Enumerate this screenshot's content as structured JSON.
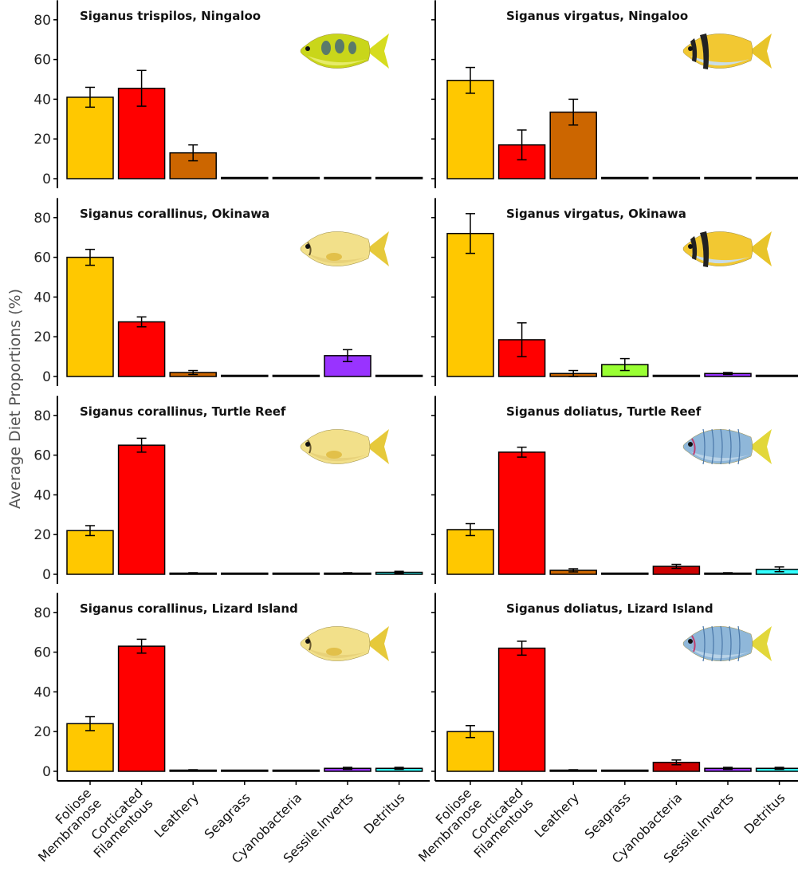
{
  "chart_data": {
    "type": "bar",
    "ylabel": "Average Diet Proportions (%)",
    "yticks": [
      0,
      20,
      40,
      60,
      80
    ],
    "ylim": [
      0,
      85
    ],
    "categories": [
      "Foliose Membranose",
      "Corticated Filamentous",
      "Leathery",
      "Seagrass",
      "Cyanobacteria",
      "Sessile.Inverts",
      "Detritus"
    ],
    "category_lines": [
      [
        "Foliose",
        "Membranose"
      ],
      [
        "Corticated",
        "Filamentous"
      ],
      [
        "Leathery"
      ],
      [
        "Seagrass"
      ],
      [
        "Cyanobacteria"
      ],
      [
        "Sessile.Inverts"
      ],
      [
        "Detritus"
      ]
    ],
    "category_colors": [
      "#FFC800",
      "#FF0000",
      "#CC6600",
      "#99FF33",
      "#CC0000",
      "#9933FF",
      "#33FFFF"
    ],
    "error_bars": "mean ± SE",
    "panels": [
      {
        "title": "Siganus trispilos, Ningaloo",
        "values": [
          41,
          45.5,
          13,
          0,
          0,
          0,
          0
        ],
        "errors": [
          5,
          9,
          4,
          0,
          0,
          0,
          0
        ],
        "fish": "yellow-spotted-rabbitfish"
      },
      {
        "title": "Siganus virgatus, Ningaloo",
        "values": [
          49.5,
          17,
          33.5,
          0,
          0,
          0,
          0
        ],
        "errors": [
          6.5,
          7.5,
          6.5,
          0,
          0,
          0,
          0
        ],
        "fish": "barred-rabbitfish"
      },
      {
        "title": "Siganus corallinus, Okinawa",
        "values": [
          60,
          27.5,
          2,
          0,
          0,
          10.5,
          0
        ],
        "errors": [
          4,
          2.5,
          1,
          0,
          0,
          3,
          0
        ],
        "fish": "blue-spotted-rabbitfish"
      },
      {
        "title": "Siganus virgatus, Okinawa",
        "values": [
          72,
          18.5,
          1.5,
          6,
          0,
          1.5,
          0
        ],
        "errors": [
          10,
          8.5,
          1.5,
          3,
          0,
          0.5,
          0
        ],
        "fish": "barred-rabbitfish"
      },
      {
        "title": "Siganus corallinus, Turtle Reef",
        "values": [
          22,
          65,
          0.5,
          0,
          0,
          0.5,
          1
        ],
        "errors": [
          2.5,
          3.5,
          0.3,
          0,
          0,
          0.3,
          0.5
        ],
        "fish": "blue-spotted-rabbitfish"
      },
      {
        "title": "Siganus doliatus, Turtle Reef",
        "values": [
          22.5,
          61.5,
          2,
          0,
          4,
          0.5,
          2.5
        ],
        "errors": [
          3,
          2.5,
          0.8,
          0,
          1,
          0.3,
          1.2
        ],
        "fish": "doliatus-rabbitfish"
      },
      {
        "title": "Siganus corallinus, Lizard Island",
        "values": [
          24,
          63,
          0.5,
          0,
          0,
          1.5,
          1.5
        ],
        "errors": [
          3.5,
          3.5,
          0.3,
          0,
          0,
          0.5,
          0.5
        ],
        "fish": "blue-spotted-rabbitfish"
      },
      {
        "title": "Siganus doliatus, Lizard Island",
        "values": [
          20,
          62,
          0.5,
          0,
          4.5,
          1.5,
          1.5
        ],
        "errors": [
          3,
          3.5,
          0.3,
          0,
          1.2,
          0.5,
          0.5
        ],
        "fish": "doliatus-rabbitfish"
      }
    ]
  }
}
